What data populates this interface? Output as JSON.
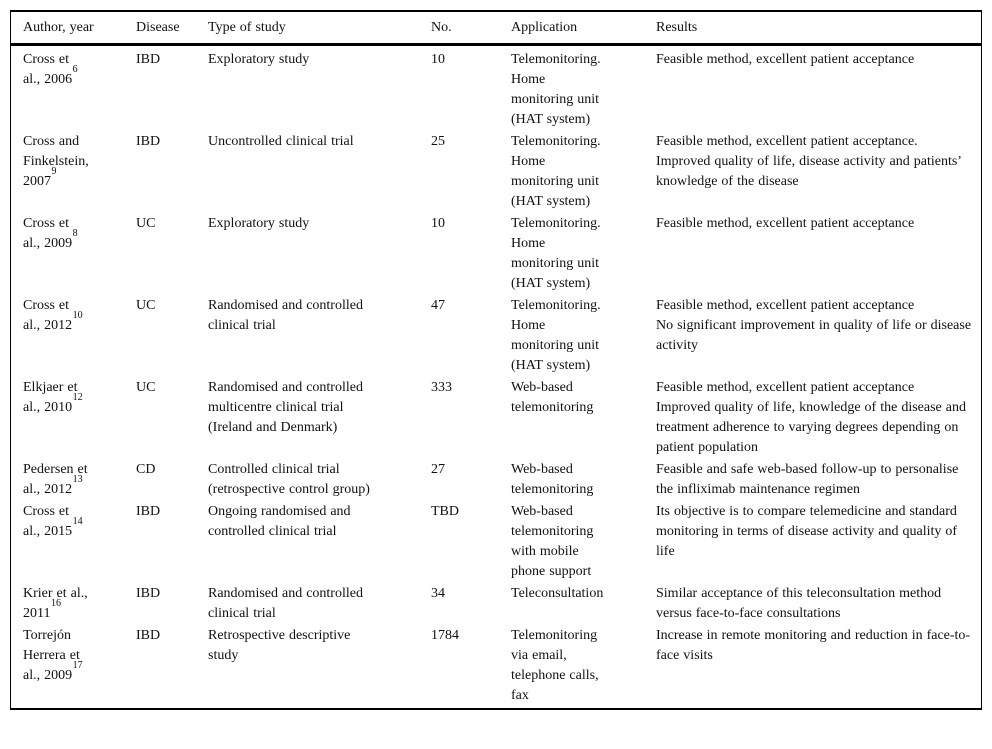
{
  "page": {
    "background": "#ffffff",
    "text_color": "#111111",
    "border_color": "#000000"
  },
  "table": {
    "headers": [
      "Author, year",
      "Disease",
      "Type of study",
      "No.",
      "Application",
      "Results"
    ],
    "rows": [
      {
        "author": "Cross et al., 2006",
        "ref": "6",
        "disease": "IBD",
        "study_type": "Exploratory study",
        "no": "10",
        "application": "Telemonitoring. Home monitoring unit (HAT system)",
        "results": [
          "Feasible method, excellent patient acceptance"
        ]
      },
      {
        "author": "Cross and Finkelstein, 2007",
        "ref": "9",
        "disease": "IBD",
        "study_type": "Uncontrolled clinical trial",
        "no": "25",
        "application": "Telemonitoring. Home monitoring unit (HAT system)",
        "results": [
          "Feasible method, excellent patient acceptance. Improved quality of life, disease activity and patients’ knowledge of the disease"
        ]
      },
      {
        "author": "Cross et al., 2009",
        "ref": "8",
        "disease": "UC",
        "study_type": "Exploratory study",
        "no": "10",
        "application": "Telemonitoring. Home monitoring unit (HAT system)",
        "results": [
          "Feasible method, excellent patient acceptance"
        ]
      },
      {
        "author": "Cross et al., 2012",
        "ref": "10",
        "disease": "UC",
        "study_type": "Randomised and controlled clinical trial",
        "no": "47",
        "application": "Telemonitoring. Home monitoring unit (HAT system)",
        "results": [
          "Feasible method, excellent patient acceptance",
          "No significant improvement in quality of life or disease activity"
        ]
      },
      {
        "author": "Elkjaer et al., 2010",
        "ref": "12",
        "disease": "UC",
        "study_type": "Randomised and controlled multicentre clinical trial (Ireland and Denmark)",
        "no": "333",
        "application": "Web-based telemonitoring",
        "results": [
          "Feasible method, excellent patient acceptance",
          "Improved quality of life, knowledge of the disease and treatment adherence to varying degrees depending on patient population"
        ]
      },
      {
        "author": "Pedersen et al., 2012",
        "ref": "13",
        "disease": "CD",
        "study_type": "Controlled clinical trial (retrospective control group)",
        "no": "27",
        "application": "Web-based telemonitoring",
        "results": [
          "Feasible and safe web-based follow-up to personalise the infliximab maintenance regimen"
        ]
      },
      {
        "author": "Cross et al., 2015",
        "ref": "14",
        "disease": "IBD",
        "study_type": "Ongoing randomised and controlled clinical trial",
        "no": "TBD",
        "application": "Web-based telemonitoring with mobile phone support",
        "results": [
          "Its objective is to compare telemedicine and standard monitoring in terms of disease activity and quality of life"
        ]
      },
      {
        "author": "Krier et al., 2011",
        "ref": "16",
        "disease": "IBD",
        "study_type": "Randomised and controlled clinical trial",
        "no": "34",
        "application": "Teleconsultation",
        "results": [
          "Similar acceptance of this teleconsultation method versus face-to-face consultations"
        ]
      },
      {
        "author": "Torrejón Herrera et al., 2009",
        "ref": "17",
        "disease": "IBD",
        "study_type": "Retrospective descriptive study",
        "no": "1784",
        "application": "Telemonitoring via email, telephone calls, fax",
        "results": [
          "Increase in remote monitoring and reduction in face-to-face visits"
        ]
      }
    ]
  }
}
